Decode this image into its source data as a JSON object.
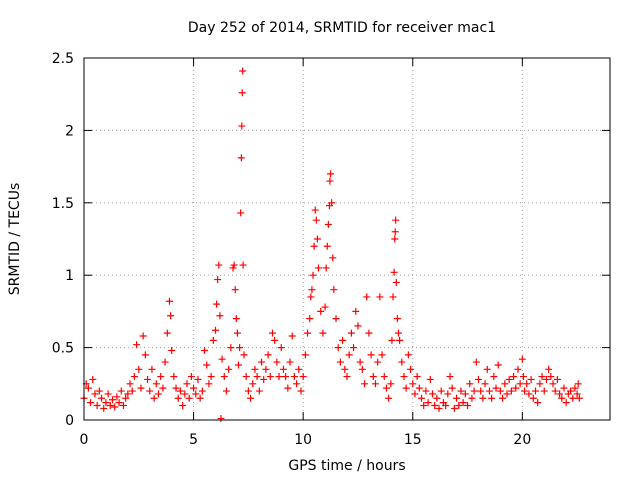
{
  "chart_data": {
    "type": "scatter",
    "title": "Day 252 of 2014, SRMTID for receiver mac1",
    "xlabel": "GPS time / hours",
    "ylabel": "SRMTID / TECUs",
    "xlim": [
      0,
      24
    ],
    "ylim": [
      0,
      2.5
    ],
    "xticks": [
      0,
      5,
      10,
      15,
      20
    ],
    "yticks": [
      0,
      0.5,
      1,
      1.5,
      2,
      2.5
    ],
    "xtick_labels": [
      "0",
      "5",
      "10",
      "15",
      "20"
    ],
    "ytick_labels": [
      "0",
      "0.5",
      "1",
      "1.5",
      "2",
      "2.5"
    ],
    "grid": true,
    "marker": "+",
    "series": [
      {
        "name": "SRMTID mac1",
        "color": "#ff0000",
        "points": [
          [
            0.0,
            0.15
          ],
          [
            0.1,
            0.25
          ],
          [
            0.2,
            0.22
          ],
          [
            0.3,
            0.12
          ],
          [
            0.4,
            0.28
          ],
          [
            0.5,
            0.18
          ],
          [
            0.6,
            0.1
          ],
          [
            0.7,
            0.2
          ],
          [
            0.8,
            0.15
          ],
          [
            0.9,
            0.08
          ],
          [
            1.0,
            0.12
          ],
          [
            1.1,
            0.18
          ],
          [
            1.2,
            0.1
          ],
          [
            1.3,
            0.14
          ],
          [
            1.4,
            0.09
          ],
          [
            1.5,
            0.16
          ],
          [
            1.6,
            0.12
          ],
          [
            1.7,
            0.2
          ],
          [
            1.8,
            0.1
          ],
          [
            1.9,
            0.15
          ],
          [
            2.0,
            0.18
          ],
          [
            2.1,
            0.25
          ],
          [
            2.2,
            0.2
          ],
          [
            2.3,
            0.3
          ],
          [
            2.4,
            0.52
          ],
          [
            2.5,
            0.35
          ],
          [
            2.6,
            0.22
          ],
          [
            2.7,
            0.58
          ],
          [
            2.8,
            0.45
          ],
          [
            2.9,
            0.28
          ],
          [
            3.0,
            0.2
          ],
          [
            3.1,
            0.35
          ],
          [
            3.2,
            0.15
          ],
          [
            3.3,
            0.25
          ],
          [
            3.4,
            0.18
          ],
          [
            3.5,
            0.3
          ],
          [
            3.6,
            0.22
          ],
          [
            3.7,
            0.4
          ],
          [
            3.8,
            0.6
          ],
          [
            3.9,
            0.82
          ],
          [
            3.95,
            0.72
          ],
          [
            4.0,
            0.48
          ],
          [
            4.1,
            0.3
          ],
          [
            4.2,
            0.22
          ],
          [
            4.3,
            0.15
          ],
          [
            4.4,
            0.2
          ],
          [
            4.5,
            0.1
          ],
          [
            4.6,
            0.18
          ],
          [
            4.7,
            0.25
          ],
          [
            4.8,
            0.15
          ],
          [
            4.9,
            0.3
          ],
          [
            5.0,
            0.22
          ],
          [
            5.1,
            0.18
          ],
          [
            5.2,
            0.28
          ],
          [
            5.3,
            0.15
          ],
          [
            5.4,
            0.2
          ],
          [
            5.5,
            0.48
          ],
          [
            5.6,
            0.38
          ],
          [
            5.7,
            0.25
          ],
          [
            5.8,
            0.3
          ],
          [
            5.9,
            0.55
          ],
          [
            6.0,
            0.62
          ],
          [
            6.05,
            0.8
          ],
          [
            6.1,
            0.97
          ],
          [
            6.15,
            1.07
          ],
          [
            6.2,
            0.72
          ],
          [
            6.25,
            0.01
          ],
          [
            6.3,
            0.42
          ],
          [
            6.4,
            0.3
          ],
          [
            6.5,
            0.2
          ],
          [
            6.6,
            0.35
          ],
          [
            6.7,
            0.5
          ],
          [
            6.8,
            1.05
          ],
          [
            6.85,
            1.07
          ],
          [
            6.9,
            0.9
          ],
          [
            6.95,
            0.7
          ],
          [
            7.0,
            0.6
          ],
          [
            7.05,
            0.38
          ],
          [
            7.1,
            0.5
          ],
          [
            7.15,
            1.43
          ],
          [
            7.18,
            1.81
          ],
          [
            7.2,
            2.03
          ],
          [
            7.22,
            2.26
          ],
          [
            7.24,
            2.41
          ],
          [
            7.26,
            1.07
          ],
          [
            7.3,
            0.45
          ],
          [
            7.4,
            0.3
          ],
          [
            7.5,
            0.2
          ],
          [
            7.6,
            0.15
          ],
          [
            7.7,
            0.25
          ],
          [
            7.8,
            0.35
          ],
          [
            7.9,
            0.3
          ],
          [
            8.0,
            0.2
          ],
          [
            8.1,
            0.4
          ],
          [
            8.2,
            0.28
          ],
          [
            8.3,
            0.35
          ],
          [
            8.4,
            0.45
          ],
          [
            8.5,
            0.3
          ],
          [
            8.6,
            0.6
          ],
          [
            8.7,
            0.55
          ],
          [
            8.8,
            0.4
          ],
          [
            8.9,
            0.3
          ],
          [
            9.0,
            0.5
          ],
          [
            9.1,
            0.35
          ],
          [
            9.2,
            0.3
          ],
          [
            9.3,
            0.22
          ],
          [
            9.4,
            0.4
          ],
          [
            9.5,
            0.58
          ],
          [
            9.6,
            0.3
          ],
          [
            9.7,
            0.25
          ],
          [
            9.8,
            0.35
          ],
          [
            9.9,
            0.2
          ],
          [
            10.0,
            0.3
          ],
          [
            10.1,
            0.45
          ],
          [
            10.2,
            0.6
          ],
          [
            10.3,
            0.7
          ],
          [
            10.35,
            0.85
          ],
          [
            10.4,
            0.9
          ],
          [
            10.45,
            1.0
          ],
          [
            10.5,
            1.2
          ],
          [
            10.55,
            1.45
          ],
          [
            10.6,
            1.38
          ],
          [
            10.65,
            1.25
          ],
          [
            10.7,
            1.05
          ],
          [
            10.8,
            0.75
          ],
          [
            10.9,
            0.6
          ],
          [
            11.0,
            0.78
          ],
          [
            11.05,
            1.05
          ],
          [
            11.1,
            1.2
          ],
          [
            11.15,
            1.35
          ],
          [
            11.2,
            1.48
          ],
          [
            11.22,
            1.65
          ],
          [
            11.25,
            1.7
          ],
          [
            11.3,
            1.5
          ],
          [
            11.35,
            1.12
          ],
          [
            11.4,
            0.9
          ],
          [
            11.5,
            0.7
          ],
          [
            11.6,
            0.5
          ],
          [
            11.7,
            0.4
          ],
          [
            11.8,
            0.55
          ],
          [
            11.9,
            0.35
          ],
          [
            12.0,
            0.3
          ],
          [
            12.1,
            0.45
          ],
          [
            12.2,
            0.6
          ],
          [
            12.3,
            0.5
          ],
          [
            12.4,
            0.75
          ],
          [
            12.5,
            0.65
          ],
          [
            12.6,
            0.4
          ],
          [
            12.7,
            0.35
          ],
          [
            12.8,
            0.25
          ],
          [
            12.9,
            0.85
          ],
          [
            13.0,
            0.6
          ],
          [
            13.1,
            0.45
          ],
          [
            13.2,
            0.3
          ],
          [
            13.3,
            0.25
          ],
          [
            13.4,
            0.4
          ],
          [
            13.5,
            0.85
          ],
          [
            13.6,
            0.45
          ],
          [
            13.7,
            0.3
          ],
          [
            13.8,
            0.22
          ],
          [
            13.9,
            0.15
          ],
          [
            14.0,
            0.25
          ],
          [
            14.05,
            0.55
          ],
          [
            14.1,
            0.85
          ],
          [
            14.15,
            1.02
          ],
          [
            14.18,
            1.25
          ],
          [
            14.2,
            1.3
          ],
          [
            14.22,
            1.38
          ],
          [
            14.25,
            0.95
          ],
          [
            14.3,
            0.7
          ],
          [
            14.35,
            0.6
          ],
          [
            14.4,
            0.55
          ],
          [
            14.5,
            0.4
          ],
          [
            14.6,
            0.3
          ],
          [
            14.7,
            0.22
          ],
          [
            14.8,
            0.45
          ],
          [
            14.9,
            0.35
          ],
          [
            15.0,
            0.25
          ],
          [
            15.1,
            0.18
          ],
          [
            15.2,
            0.3
          ],
          [
            15.3,
            0.22
          ],
          [
            15.4,
            0.15
          ],
          [
            15.5,
            0.1
          ],
          [
            15.6,
            0.2
          ],
          [
            15.7,
            0.12
          ],
          [
            15.8,
            0.28
          ],
          [
            15.9,
            0.18
          ],
          [
            16.0,
            0.1
          ],
          [
            16.1,
            0.15
          ],
          [
            16.2,
            0.08
          ],
          [
            16.3,
            0.2
          ],
          [
            16.4,
            0.12
          ],
          [
            16.5,
            0.1
          ],
          [
            16.6,
            0.18
          ],
          [
            16.7,
            0.3
          ],
          [
            16.8,
            0.22
          ],
          [
            16.9,
            0.08
          ],
          [
            17.0,
            0.15
          ],
          [
            17.1,
            0.1
          ],
          [
            17.2,
            0.2
          ],
          [
            17.3,
            0.12
          ],
          [
            17.4,
            0.18
          ],
          [
            17.5,
            0.1
          ],
          [
            17.6,
            0.25
          ],
          [
            17.7,
            0.15
          ],
          [
            17.8,
            0.2
          ],
          [
            17.9,
            0.4
          ],
          [
            18.0,
            0.28
          ],
          [
            18.1,
            0.2
          ],
          [
            18.2,
            0.15
          ],
          [
            18.3,
            0.25
          ],
          [
            18.4,
            0.35
          ],
          [
            18.5,
            0.2
          ],
          [
            18.6,
            0.15
          ],
          [
            18.7,
            0.3
          ],
          [
            18.8,
            0.22
          ],
          [
            18.9,
            0.38
          ],
          [
            19.0,
            0.2
          ],
          [
            19.1,
            0.15
          ],
          [
            19.2,
            0.25
          ],
          [
            19.3,
            0.18
          ],
          [
            19.4,
            0.28
          ],
          [
            19.5,
            0.2
          ],
          [
            19.6,
            0.3
          ],
          [
            19.7,
            0.22
          ],
          [
            19.8,
            0.35
          ],
          [
            19.9,
            0.25
          ],
          [
            20.0,
            0.42
          ],
          [
            20.05,
            0.3
          ],
          [
            20.1,
            0.2
          ],
          [
            20.2,
            0.25
          ],
          [
            20.3,
            0.18
          ],
          [
            20.4,
            0.28
          ],
          [
            20.5,
            0.15
          ],
          [
            20.6,
            0.2
          ],
          [
            20.7,
            0.12
          ],
          [
            20.8,
            0.25
          ],
          [
            20.9,
            0.3
          ],
          [
            21.0,
            0.2
          ],
          [
            21.1,
            0.28
          ],
          [
            21.2,
            0.35
          ],
          [
            21.3,
            0.3
          ],
          [
            21.4,
            0.25
          ],
          [
            21.5,
            0.2
          ],
          [
            21.6,
            0.28
          ],
          [
            21.7,
            0.18
          ],
          [
            21.8,
            0.15
          ],
          [
            21.9,
            0.22
          ],
          [
            22.0,
            0.12
          ],
          [
            22.1,
            0.18
          ],
          [
            22.2,
            0.2
          ],
          [
            22.3,
            0.15
          ],
          [
            22.4,
            0.22
          ],
          [
            22.5,
            0.18
          ],
          [
            22.55,
            0.25
          ],
          [
            22.6,
            0.15
          ]
        ]
      }
    ]
  }
}
